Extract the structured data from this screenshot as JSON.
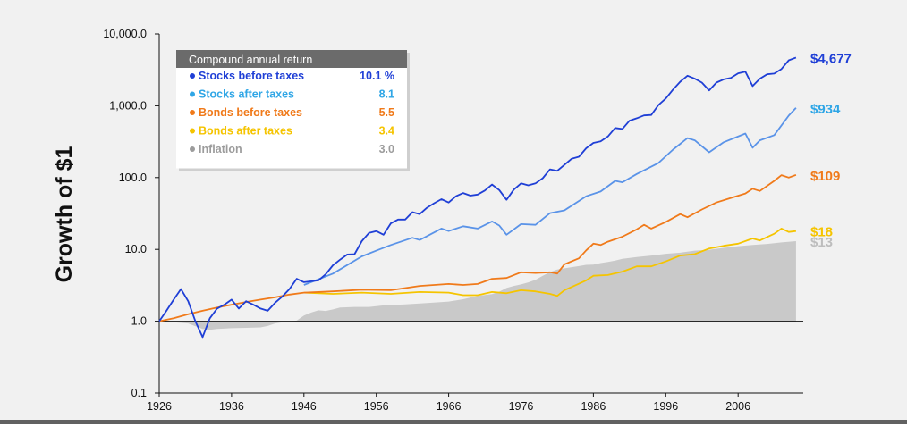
{
  "chart_data": {
    "type": "line",
    "title": "",
    "xlabel": "",
    "ylabel": "Growth of $1",
    "y_scale": "log",
    "ylim": [
      0.1,
      10000
    ],
    "xlim": [
      1926,
      2015
    ],
    "y_ticks": [
      "10,000.0",
      "1,000.0",
      "100.0",
      "10.0",
      "1.0",
      "0.1"
    ],
    "x_ticks": [
      "1926",
      "1936",
      "1946",
      "1956",
      "1966",
      "1976",
      "1986",
      "1996",
      "2006"
    ],
    "grid": false,
    "legend": {
      "placement": "top-left",
      "header": "Compound annual return",
      "items": [
        {
          "name": "Stocks before taxes",
          "value": "10.1 %",
          "color": "#1f3fd6"
        },
        {
          "name": "Stocks after taxes",
          "value": "8.1",
          "color": "#2fa6e6"
        },
        {
          "name": "Bonds before taxes",
          "value": "5.5",
          "color": "#f07a1a"
        },
        {
          "name": "Bonds after taxes",
          "value": "3.4",
          "color": "#f5c400"
        },
        {
          "name": "Inflation",
          "value": "3.0",
          "color": "#9c9c9c"
        }
      ]
    },
    "series": [
      {
        "name": "Stocks before taxes",
        "end_label": "$4,677",
        "color": "#1f3fd6",
        "line_color": "#1f3fd6",
        "points": [
          [
            1926,
            1.0
          ],
          [
            1927,
            1.4
          ],
          [
            1928,
            2.0
          ],
          [
            1929,
            2.8
          ],
          [
            1930,
            1.9
          ],
          [
            1931,
            1.0
          ],
          [
            1932,
            0.6
          ],
          [
            1933,
            1.1
          ],
          [
            1934,
            1.5
          ],
          [
            1935,
            1.7
          ],
          [
            1936,
            2.0
          ],
          [
            1937,
            1.5
          ],
          [
            1938,
            1.9
          ],
          [
            1939,
            1.7
          ],
          [
            1940,
            1.5
          ],
          [
            1941,
            1.4
          ],
          [
            1942,
            1.8
          ],
          [
            1943,
            2.2
          ],
          [
            1944,
            2.8
          ],
          [
            1945,
            3.9
          ],
          [
            1946,
            3.5
          ],
          [
            1947,
            3.6
          ],
          [
            1948,
            3.7
          ],
          [
            1949,
            4.5
          ],
          [
            1950,
            6.0
          ],
          [
            1951,
            7.2
          ],
          [
            1952,
            8.5
          ],
          [
            1953,
            8.6
          ],
          [
            1954,
            13.0
          ],
          [
            1955,
            17.0
          ],
          [
            1956,
            18.0
          ],
          [
            1957,
            16.0
          ],
          [
            1958,
            23.0
          ],
          [
            1959,
            26.0
          ],
          [
            1960,
            26.0
          ],
          [
            1961,
            33.0
          ],
          [
            1962,
            31.0
          ],
          [
            1963,
            38.0
          ],
          [
            1964,
            44.0
          ],
          [
            1965,
            50.0
          ],
          [
            1966,
            45.0
          ],
          [
            1967,
            55.0
          ],
          [
            1968,
            61.0
          ],
          [
            1969,
            56.0
          ],
          [
            1970,
            58.0
          ],
          [
            1971,
            66.0
          ],
          [
            1972,
            80.0
          ],
          [
            1973,
            67.0
          ],
          [
            1974,
            49.0
          ],
          [
            1975,
            68.0
          ],
          [
            1976,
            83.0
          ],
          [
            1977,
            78.0
          ],
          [
            1978,
            83.0
          ],
          [
            1979,
            98.0
          ],
          [
            1980,
            130.0
          ],
          [
            1981,
            124.0
          ],
          [
            1982,
            150.0
          ],
          [
            1983,
            183.0
          ],
          [
            1984,
            195.0
          ],
          [
            1985,
            256.0
          ],
          [
            1986,
            304.0
          ],
          [
            1987,
            320.0
          ],
          [
            1988,
            373.0
          ],
          [
            1989,
            490.0
          ],
          [
            1990,
            475.0
          ],
          [
            1991,
            620.0
          ],
          [
            1992,
            670.0
          ],
          [
            1993,
            735.0
          ],
          [
            1994,
            745.0
          ],
          [
            1995,
            1025.0
          ],
          [
            1996,
            1260.0
          ],
          [
            1997,
            1680.0
          ],
          [
            1998,
            2160.0
          ],
          [
            1999,
            2615.0
          ],
          [
            2000,
            2380.0
          ],
          [
            2001,
            2100.0
          ],
          [
            2002,
            1635.0
          ],
          [
            2003,
            2100.0
          ],
          [
            2004,
            2330.0
          ],
          [
            2005,
            2445.0
          ],
          [
            2006,
            2830.0
          ],
          [
            2007,
            2985.0
          ],
          [
            2008,
            1880.0
          ],
          [
            2009,
            2380.0
          ],
          [
            2010,
            2740.0
          ],
          [
            2011,
            2800.0
          ],
          [
            2012,
            3250.0
          ],
          [
            2013,
            4300.0
          ],
          [
            2014,
            4677.0
          ]
        ]
      },
      {
        "name": "Stocks after taxes",
        "end_label": "$934",
        "color": "#2fa6e6",
        "line_color": "#5a93e8",
        "points": [
          [
            1946,
            3.2
          ],
          [
            1950,
            4.6
          ],
          [
            1954,
            8.0
          ],
          [
            1956,
            9.6
          ],
          [
            1958,
            11.5
          ],
          [
            1961,
            14.5
          ],
          [
            1962,
            13.5
          ],
          [
            1965,
            19.5
          ],
          [
            1966,
            18.0
          ],
          [
            1968,
            21.0
          ],
          [
            1970,
            19.5
          ],
          [
            1972,
            24.5
          ],
          [
            1973,
            21.5
          ],
          [
            1974,
            16.0
          ],
          [
            1976,
            22.5
          ],
          [
            1978,
            22.0
          ],
          [
            1980,
            32.0
          ],
          [
            1982,
            35.0
          ],
          [
            1985,
            55.0
          ],
          [
            1987,
            64.0
          ],
          [
            1989,
            90.0
          ],
          [
            1990,
            86.0
          ],
          [
            1992,
            112.0
          ],
          [
            1995,
            160.0
          ],
          [
            1997,
            245.0
          ],
          [
            1999,
            355.0
          ],
          [
            2000,
            330.0
          ],
          [
            2002,
            225.0
          ],
          [
            2004,
            310.0
          ],
          [
            2007,
            410.0
          ],
          [
            2008,
            260.0
          ],
          [
            2009,
            330.0
          ],
          [
            2011,
            390.0
          ],
          [
            2013,
            730.0
          ],
          [
            2014,
            934.0
          ]
        ]
      },
      {
        "name": "Bonds before taxes",
        "end_label": "$109",
        "color": "#f07a1a",
        "line_color": "#f07a1a",
        "points": [
          [
            1926,
            1.0
          ],
          [
            1928,
            1.1
          ],
          [
            1930,
            1.25
          ],
          [
            1932,
            1.4
          ],
          [
            1934,
            1.55
          ],
          [
            1936,
            1.7
          ],
          [
            1938,
            1.85
          ],
          [
            1940,
            2.0
          ],
          [
            1942,
            2.15
          ],
          [
            1944,
            2.35
          ],
          [
            1946,
            2.5
          ],
          [
            1950,
            2.6
          ],
          [
            1954,
            2.75
          ],
          [
            1958,
            2.7
          ],
          [
            1962,
            3.1
          ],
          [
            1966,
            3.3
          ],
          [
            1968,
            3.2
          ],
          [
            1970,
            3.3
          ],
          [
            1972,
            3.9
          ],
          [
            1974,
            4.0
          ],
          [
            1976,
            4.8
          ],
          [
            1978,
            4.7
          ],
          [
            1980,
            4.8
          ],
          [
            1981,
            4.6
          ],
          [
            1982,
            6.2
          ],
          [
            1984,
            7.5
          ],
          [
            1985,
            9.7
          ],
          [
            1986,
            12.0
          ],
          [
            1987,
            11.5
          ],
          [
            1988,
            12.8
          ],
          [
            1990,
            15.0
          ],
          [
            1992,
            19.0
          ],
          [
            1993,
            22.0
          ],
          [
            1994,
            19.5
          ],
          [
            1996,
            24.0
          ],
          [
            1998,
            31.0
          ],
          [
            1999,
            28.0
          ],
          [
            2001,
            36.0
          ],
          [
            2003,
            45.0
          ],
          [
            2005,
            52.0
          ],
          [
            2007,
            60.0
          ],
          [
            2008,
            70.0
          ],
          [
            2009,
            65.0
          ],
          [
            2011,
            90.0
          ],
          [
            2012,
            108.0
          ],
          [
            2013,
            100.0
          ],
          [
            2014,
            109.0
          ]
        ]
      },
      {
        "name": "Bonds after taxes",
        "end_label": "$18",
        "color": "#f5c400",
        "line_color": "#f5c400",
        "points": [
          [
            1946,
            2.5
          ],
          [
            1950,
            2.4
          ],
          [
            1954,
            2.5
          ],
          [
            1958,
            2.4
          ],
          [
            1962,
            2.55
          ],
          [
            1966,
            2.5
          ],
          [
            1968,
            2.3
          ],
          [
            1970,
            2.3
          ],
          [
            1972,
            2.55
          ],
          [
            1974,
            2.45
          ],
          [
            1976,
            2.7
          ],
          [
            1978,
            2.6
          ],
          [
            1980,
            2.4
          ],
          [
            1981,
            2.25
          ],
          [
            1982,
            2.7
          ],
          [
            1985,
            3.7
          ],
          [
            1986,
            4.3
          ],
          [
            1988,
            4.4
          ],
          [
            1990,
            4.9
          ],
          [
            1992,
            5.8
          ],
          [
            1994,
            5.8
          ],
          [
            1996,
            6.8
          ],
          [
            1998,
            8.2
          ],
          [
            2000,
            8.6
          ],
          [
            2002,
            10.3
          ],
          [
            2004,
            11.2
          ],
          [
            2006,
            12.0
          ],
          [
            2008,
            14.2
          ],
          [
            2009,
            13.3
          ],
          [
            2011,
            16.5
          ],
          [
            2012,
            19.5
          ],
          [
            2013,
            17.5
          ],
          [
            2014,
            18.0
          ]
        ]
      },
      {
        "name": "Inflation",
        "end_label": "$13",
        "color": "#9c9c9c",
        "fill_color": "#c9c9c9",
        "end_label_color": "#bdbdbd",
        "points": [
          [
            1926,
            1.0
          ],
          [
            1928,
            0.97
          ],
          [
            1930,
            0.93
          ],
          [
            1932,
            0.78
          ],
          [
            1933,
            0.76
          ],
          [
            1934,
            0.78
          ],
          [
            1936,
            0.8
          ],
          [
            1938,
            0.81
          ],
          [
            1940,
            0.82
          ],
          [
            1941,
            0.86
          ],
          [
            1942,
            0.93
          ],
          [
            1943,
            0.97
          ],
          [
            1944,
            0.99
          ],
          [
            1945,
            1.02
          ],
          [
            1946,
            1.2
          ],
          [
            1947,
            1.32
          ],
          [
            1948,
            1.42
          ],
          [
            1949,
            1.39
          ],
          [
            1950,
            1.46
          ],
          [
            1951,
            1.55
          ],
          [
            1953,
            1.58
          ],
          [
            1955,
            1.58
          ],
          [
            1957,
            1.66
          ],
          [
            1960,
            1.72
          ],
          [
            1963,
            1.79
          ],
          [
            1966,
            1.88
          ],
          [
            1968,
            2.02
          ],
          [
            1970,
            2.25
          ],
          [
            1972,
            2.38
          ],
          [
            1973,
            2.58
          ],
          [
            1974,
            2.9
          ],
          [
            1975,
            3.1
          ],
          [
            1976,
            3.25
          ],
          [
            1977,
            3.48
          ],
          [
            1978,
            3.78
          ],
          [
            1979,
            4.3
          ],
          [
            1980,
            4.85
          ],
          [
            1981,
            5.25
          ],
          [
            1982,
            5.45
          ],
          [
            1983,
            5.65
          ],
          [
            1984,
            5.85
          ],
          [
            1985,
            6.1
          ],
          [
            1986,
            6.15
          ],
          [
            1987,
            6.45
          ],
          [
            1988,
            6.7
          ],
          [
            1989,
            7.0
          ],
          [
            1990,
            7.4
          ],
          [
            1992,
            7.85
          ],
          [
            1994,
            8.2
          ],
          [
            1996,
            8.7
          ],
          [
            1998,
            9.0
          ],
          [
            2000,
            9.6
          ],
          [
            2002,
            9.9
          ],
          [
            2004,
            10.5
          ],
          [
            2006,
            11.1
          ],
          [
            2008,
            11.5
          ],
          [
            2010,
            11.9
          ],
          [
            2012,
            12.5
          ],
          [
            2014,
            13.0
          ]
        ]
      }
    ]
  }
}
